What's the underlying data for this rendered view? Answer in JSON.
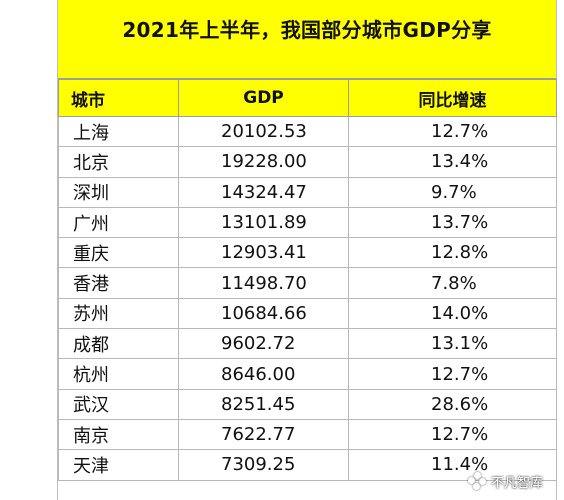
{
  "title": "2021年上半年，我国部分城市GDP分享",
  "headers": {
    "city": "城市",
    "gdp": "GDP",
    "rate": "同比增速"
  },
  "rows": [
    {
      "city": "上海",
      "gdp": "20102.53",
      "rate": "12.7%"
    },
    {
      "city": "北京",
      "gdp": "19228.00",
      "rate": "13.4%"
    },
    {
      "city": "深圳",
      "gdp": "14324.47",
      "rate": "9.7%"
    },
    {
      "city": "广州",
      "gdp": "13101.89",
      "rate": "13.7%"
    },
    {
      "city": "重庆",
      "gdp": "12903.41",
      "rate": "12.8%"
    },
    {
      "city": "香港",
      "gdp": "11498.70",
      "rate": "7.8%"
    },
    {
      "city": "苏州",
      "gdp": "10684.66",
      "rate": "14.0%"
    },
    {
      "city": "成都",
      "gdp": "9602.72",
      "rate": "13.1%"
    },
    {
      "city": "杭州",
      "gdp": "8646.00",
      "rate": "12.7%"
    },
    {
      "city": "武汉",
      "gdp": "8251.45",
      "rate": "28.6%"
    },
    {
      "city": "南京",
      "gdp": "7622.77",
      "rate": "12.7%"
    },
    {
      "city": "天津",
      "gdp": "7309.25",
      "rate": "11.4%"
    }
  ],
  "watermark": {
    "text": "不凡智库",
    "icon": "app-logo-icon"
  },
  "colors": {
    "header_fill": "#ffff00",
    "grid_line": "#b8b8b8"
  }
}
